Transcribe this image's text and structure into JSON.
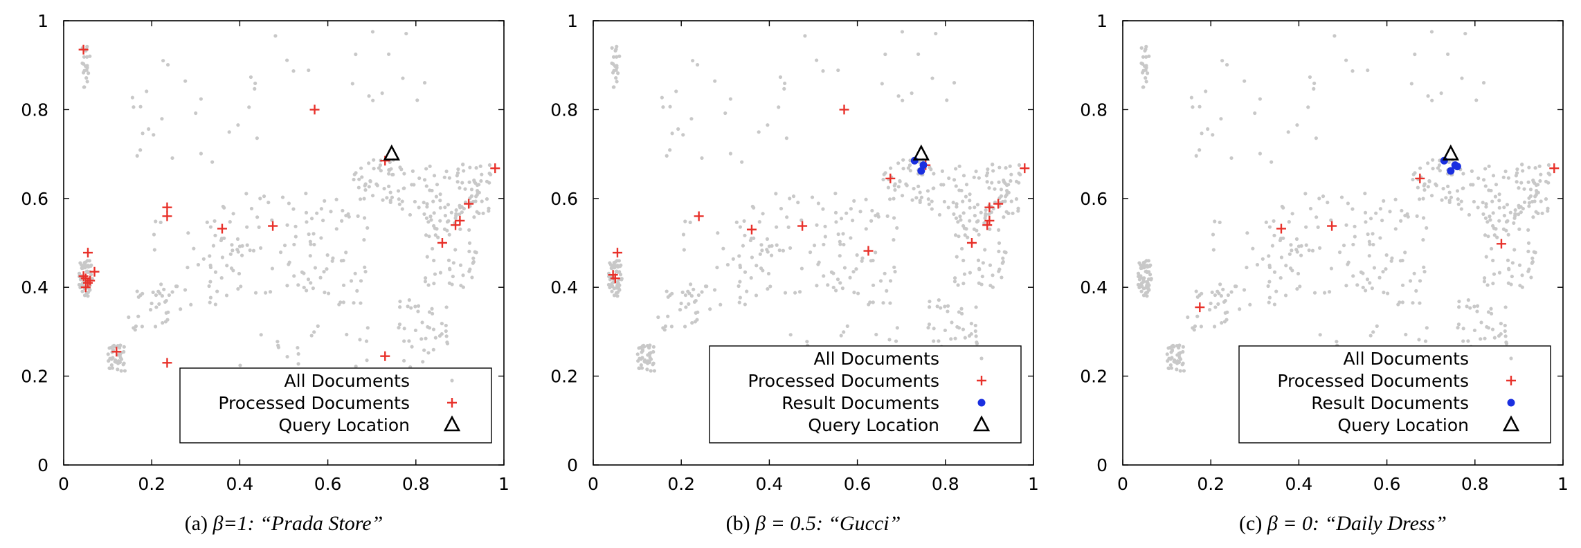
{
  "figure": {
    "colors": {
      "all": "#c8c8c8",
      "processed": "#e8312a",
      "result": "#1a2fe0",
      "query": "#000000"
    },
    "x_ticks": [
      "0",
      "0.2",
      "0.4",
      "0.6",
      "0.8",
      "1"
    ],
    "y_ticks": [
      "0",
      "0.2",
      "0.4",
      "0.6",
      "0.8",
      "1"
    ]
  },
  "chart_data": [
    {
      "type": "scatter",
      "caption": {
        "label": "(a)",
        "param": "β=1:",
        "query": "“Prada Store”"
      },
      "xlim": [
        0,
        1
      ],
      "ylim": [
        0,
        1
      ],
      "grid": false,
      "legend_placement": "bottom-right",
      "legend": [
        "All Documents",
        "Processed Documents",
        "Query Location"
      ],
      "series": [
        {
          "name": "Processed Documents",
          "marker": "plus",
          "points": [
            [
              0.045,
              0.935
            ],
            [
              0.57,
              0.8
            ],
            [
              0.73,
              0.685
            ],
            [
              0.98,
              0.668
            ],
            [
              0.235,
              0.58
            ],
            [
              0.235,
              0.56
            ],
            [
              0.92,
              0.588
            ],
            [
              0.9,
              0.55
            ],
            [
              0.89,
              0.54
            ],
            [
              0.36,
              0.532
            ],
            [
              0.475,
              0.538
            ],
            [
              0.86,
              0.5
            ],
            [
              0.055,
              0.478
            ],
            [
              0.07,
              0.435
            ],
            [
              0.045,
              0.425
            ],
            [
              0.05,
              0.42
            ],
            [
              0.055,
              0.41
            ],
            [
              0.05,
              0.4
            ],
            [
              0.06,
              0.415
            ],
            [
              0.12,
              0.255
            ],
            [
              0.235,
              0.23
            ],
            [
              0.73,
              0.245
            ]
          ]
        },
        {
          "name": "Query Location",
          "marker": "triangle",
          "points": [
            [
              0.745,
              0.7
            ]
          ]
        }
      ]
    },
    {
      "type": "scatter",
      "caption": {
        "label": "(b)",
        "param": "β = 0.5:",
        "query": "“Gucci”"
      },
      "xlim": [
        0,
        1
      ],
      "ylim": [
        0,
        1
      ],
      "grid": false,
      "legend_placement": "bottom-right",
      "legend": [
        "All Documents",
        "Processed Documents",
        "Result Documents",
        "Query Location"
      ],
      "series": [
        {
          "name": "Processed Documents",
          "marker": "plus",
          "points": [
            [
              0.57,
              0.8
            ],
            [
              0.755,
              0.675
            ],
            [
              0.98,
              0.668
            ],
            [
              0.675,
              0.645
            ],
            [
              0.92,
              0.588
            ],
            [
              0.9,
              0.58
            ],
            [
              0.24,
              0.56
            ],
            [
              0.9,
              0.55
            ],
            [
              0.895,
              0.54
            ],
            [
              0.36,
              0.53
            ],
            [
              0.475,
              0.538
            ],
            [
              0.86,
              0.5
            ],
            [
              0.625,
              0.482
            ],
            [
              0.055,
              0.478
            ],
            [
              0.045,
              0.428
            ],
            [
              0.05,
              0.42
            ],
            [
              0.73,
              0.245
            ]
          ]
        },
        {
          "name": "Result Documents",
          "marker": "circle",
          "points": [
            [
              0.73,
              0.685
            ],
            [
              0.75,
              0.675
            ],
            [
              0.745,
              0.662
            ]
          ]
        },
        {
          "name": "Query Location",
          "marker": "triangle",
          "points": [
            [
              0.745,
              0.7
            ]
          ]
        }
      ]
    },
    {
      "type": "scatter",
      "caption": {
        "label": "(c)",
        "param": "β = 0:",
        "query": "“Daily Dress”"
      },
      "xlim": [
        0,
        1
      ],
      "ylim": [
        0,
        1
      ],
      "grid": false,
      "legend_placement": "bottom-right",
      "legend": [
        "All Documents",
        "Processed Documents",
        "Result Documents",
        "Query Location"
      ],
      "series": [
        {
          "name": "Processed Documents",
          "marker": "plus",
          "points": [
            [
              0.98,
              0.668
            ],
            [
              0.675,
              0.645
            ],
            [
              0.36,
              0.532
            ],
            [
              0.475,
              0.538
            ],
            [
              0.86,
              0.498
            ],
            [
              0.175,
              0.355
            ]
          ]
        },
        {
          "name": "Result Documents",
          "marker": "circle",
          "points": [
            [
              0.73,
              0.685
            ],
            [
              0.755,
              0.675
            ],
            [
              0.745,
              0.662
            ],
            [
              0.76,
              0.672
            ]
          ]
        },
        {
          "name": "Query Location",
          "marker": "triangle",
          "points": [
            [
              0.745,
              0.7
            ]
          ]
        }
      ]
    }
  ]
}
